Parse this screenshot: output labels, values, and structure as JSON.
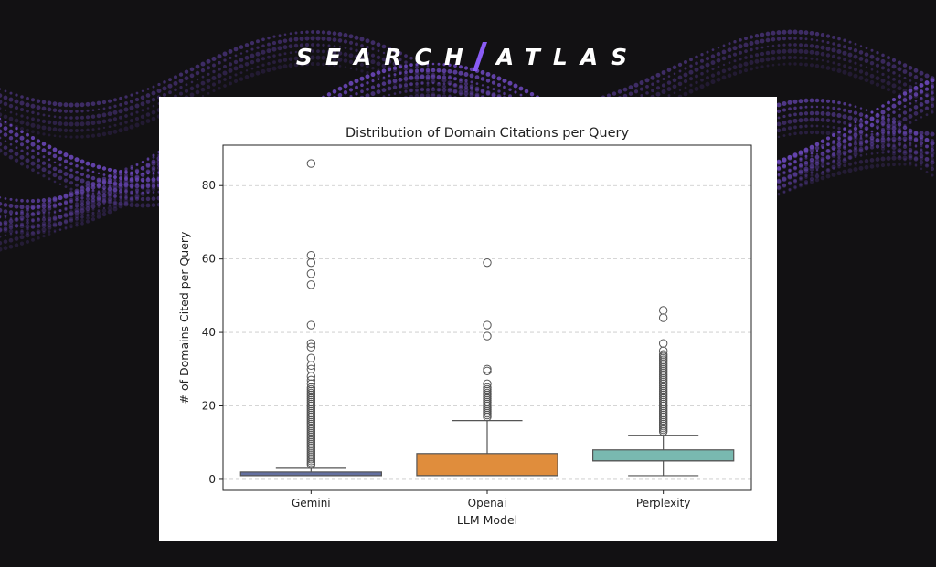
{
  "brand": {
    "left": "SEARCH",
    "right": "ATLAS",
    "accent": "#8a5cf6"
  },
  "colors": {
    "background": "#121113",
    "wave": "#6a47b8"
  },
  "chart_data": {
    "type": "box",
    "title": "Distribution of Domain Citations per Query",
    "xlabel": "LLM Model",
    "ylabel": "# of Domains Cited per Query",
    "categories": [
      "Gemini",
      "Openai",
      "Perplexity"
    ],
    "ylim": [
      -3,
      91
    ],
    "yticks": [
      0,
      20,
      40,
      60,
      80
    ],
    "grid": "horizontal dashed",
    "boxes": [
      {
        "name": "Gemini",
        "color": "#6470a0",
        "whisker_low": 1,
        "q1": 1,
        "median": 1,
        "q3": 2,
        "whisker_high": 3,
        "outliers": [
          4,
          4.5,
          5,
          5.5,
          6,
          6.5,
          7,
          7.5,
          8,
          8.5,
          9,
          9.5,
          10,
          10.5,
          11,
          11.5,
          12,
          12.5,
          13,
          13.5,
          14,
          14.5,
          15,
          15.5,
          16,
          16.5,
          17,
          17.5,
          18,
          18.5,
          19,
          19.5,
          20,
          20.5,
          21,
          21.5,
          22,
          22.5,
          23,
          23.5,
          24,
          24.5,
          25,
          26,
          27,
          28,
          30,
          31,
          33,
          36,
          37,
          42,
          53,
          56,
          59,
          61,
          86
        ]
      },
      {
        "name": "Openai",
        "color": "#e08d3c",
        "whisker_low": 1,
        "q1": 1,
        "median": 1,
        "q3": 7,
        "whisker_high": 16,
        "outliers": [
          17,
          17.5,
          18,
          18.5,
          19,
          19.5,
          20,
          20.5,
          21,
          21.5,
          22,
          22.5,
          23,
          23.5,
          24,
          24.5,
          25,
          26,
          29.5,
          30,
          39,
          42,
          59
        ]
      },
      {
        "name": "Perplexity",
        "color": "#79b9b0",
        "whisker_low": 1,
        "q1": 5,
        "median": 5,
        "q3": 8,
        "whisker_high": 12,
        "outliers": [
          13,
          13.5,
          14,
          14.5,
          15,
          15.5,
          16,
          16.5,
          17,
          17.5,
          18,
          18.5,
          19,
          19.5,
          20,
          20.5,
          21,
          21.5,
          22,
          22.5,
          23,
          23.5,
          24,
          24.5,
          25,
          25.5,
          26,
          26.5,
          27,
          27.5,
          28,
          28.5,
          29,
          29.5,
          30,
          30.5,
          31,
          31.5,
          32,
          32.5,
          33,
          33.5,
          34,
          35,
          37,
          44,
          46
        ]
      }
    ]
  }
}
